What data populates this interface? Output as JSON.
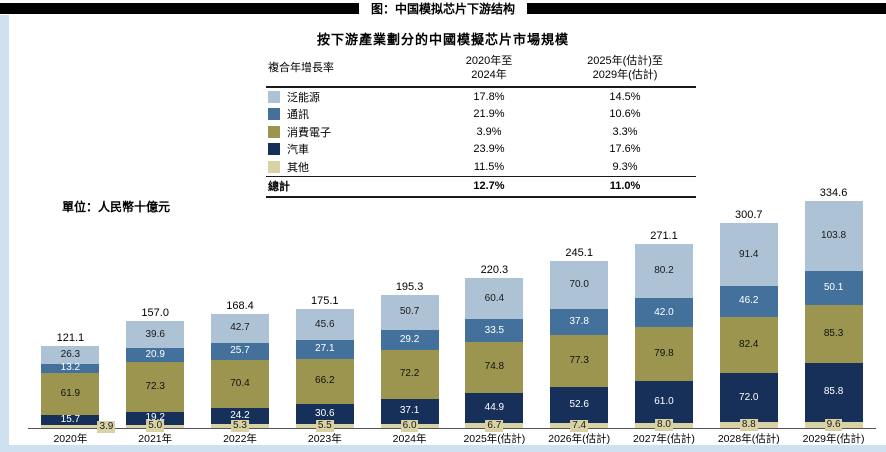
{
  "page": {
    "header_title": "图：中国模拟芯片下游结构",
    "accent_strip_color": "#cfe1f0"
  },
  "chart": {
    "title": "按下游產業劃分的中國模擬芯片市場規模",
    "unit_label": "單位：人民幣十億元",
    "legend_table": {
      "col0_header": "複合年增長率",
      "col1_header_line1": "2020年至",
      "col1_header_line2": "2024年",
      "col2_header_line1": "2025年(估計)至",
      "col2_header_line2": "2029年(估計)"
    }
  },
  "chart_data": {
    "type": "bar",
    "variant": "stacked",
    "title": "按下游產業劃分的中國模擬芯片市場規模",
    "unit": "人民幣十億元",
    "grid": false,
    "value_axis_visible": false,
    "legend_position": "top-center-table",
    "categories": [
      "2020年",
      "2021年",
      "2022年",
      "2023年",
      "2024年",
      "2025年(估計)",
      "2026年(估計)",
      "2027年(估計)",
      "2028年(估計)",
      "2029年(估計)"
    ],
    "totals": [
      121.1,
      157.0,
      168.4,
      175.1,
      195.3,
      220.3,
      245.1,
      271.1,
      300.7,
      334.6
    ],
    "series": [
      {
        "key": "pan-energy",
        "name": "泛能源",
        "color": "#adc2d4",
        "label_color": "#1a1a1a",
        "values": [
          26.3,
          39.6,
          42.7,
          45.6,
          50.7,
          60.4,
          70.0,
          80.2,
          91.4,
          103.8
        ],
        "cagr_2020_2024": "17.8%",
        "cagr_2025_2029": "14.5%"
      },
      {
        "key": "communications",
        "name": "通訊",
        "color": "#44719c",
        "label_color": "#ffffff",
        "values": [
          13.2,
          20.9,
          25.7,
          27.1,
          29.2,
          33.5,
          37.8,
          42.0,
          46.2,
          50.1
        ],
        "cagr_2020_2024": "21.9%",
        "cagr_2025_2029": "10.6%"
      },
      {
        "key": "consumer-electronics",
        "name": "消費電子",
        "color": "#9b954f",
        "label_color": "#111111",
        "values": [
          61.9,
          72.3,
          70.4,
          66.2,
          72.2,
          74.8,
          77.3,
          79.8,
          82.4,
          85.3
        ],
        "cagr_2020_2024": "3.9%",
        "cagr_2025_2029": "3.3%"
      },
      {
        "key": "automotive",
        "name": "汽車",
        "color": "#16305a",
        "label_color": "#ffffff",
        "values": [
          15.7,
          19.2,
          24.2,
          30.6,
          37.1,
          44.9,
          52.6,
          61.0,
          72.0,
          85.8
        ],
        "cagr_2020_2024": "23.9%",
        "cagr_2025_2029": "17.6%"
      },
      {
        "key": "others",
        "name": "其他",
        "color": "#d8d2a5",
        "label_color": "#1a1a1a",
        "boxed_labels": true,
        "values": [
          3.9,
          5.0,
          5.3,
          5.5,
          6.0,
          6.7,
          7.4,
          8.0,
          8.8,
          9.6
        ],
        "cagr_2020_2024": "11.5%",
        "cagr_2025_2029": "9.3%"
      }
    ],
    "total_row": {
      "name": "總計",
      "cagr_2020_2024": "12.7%",
      "cagr_2025_2029": "11.0%"
    }
  }
}
